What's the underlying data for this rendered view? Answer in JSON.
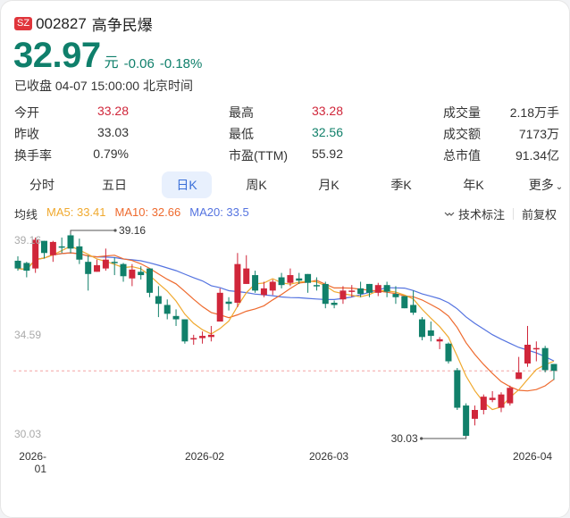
{
  "header": {
    "exchange_badge": "SZ",
    "code": "002827",
    "name": "高争民爆",
    "price": "32.97",
    "unit": "元",
    "change": "-0.06",
    "change_pct": "-0.18%",
    "status": "已收盘 04-07 15:00:00 北京时间"
  },
  "stats": {
    "rows": [
      [
        {
          "label": "今开",
          "value": "33.28",
          "color": "red"
        },
        {
          "label": "最高",
          "value": "33.28",
          "color": "red"
        },
        {
          "label": "成交量",
          "value": "2.18万手"
        }
      ],
      [
        {
          "label": "昨收",
          "value": "33.03"
        },
        {
          "label": "最低",
          "value": "32.56",
          "color": "green"
        },
        {
          "label": "成交额",
          "value": "7173万"
        }
      ],
      [
        {
          "label": "换手率",
          "value": "0.79%"
        },
        {
          "label": "市盈(TTM)",
          "value": "55.92"
        },
        {
          "label": "总市值",
          "value": "91.34亿"
        }
      ]
    ]
  },
  "tabs": [
    {
      "label": "分时"
    },
    {
      "label": "五日"
    },
    {
      "label": "日K",
      "active": true
    },
    {
      "label": "周K"
    },
    {
      "label": "月K"
    },
    {
      "label": "季K"
    },
    {
      "label": "年K"
    },
    {
      "label": "更多"
    }
  ],
  "ma": {
    "label": "均线",
    "ma5": "MA5: 33.41",
    "ma10": "MA10: 32.66",
    "ma20": "MA20: 33.5"
  },
  "tools": {
    "annotate": "技术标注",
    "adjust": "前复权"
  },
  "colors": {
    "up": "#d0263a",
    "down": "#11806a",
    "ma5": "#f0a92e",
    "ma10": "#ee6a2e",
    "ma20": "#5473e0",
    "accent": "#3a6fd8"
  },
  "chart_data": {
    "type": "candlestick",
    "title": "002827 高争民爆 日K",
    "ylim": [
      30.03,
      39.16
    ],
    "y_ticks": [
      "39.16",
      "34.59",
      "30.03"
    ],
    "x_ticks": [
      "2026-01",
      "2026-02",
      "2026-03",
      "2026-04"
    ],
    "annotations": {
      "high": "39.16",
      "low": "30.03"
    },
    "last_close_line": 32.97,
    "legend": [
      "MA5: 33.41",
      "MA10: 32.66",
      "MA20: 33.5"
    ],
    "candles": [
      {
        "o": 37.95,
        "c": 37.6,
        "h": 38.15,
        "l": 37.5
      },
      {
        "o": 37.85,
        "c": 37.5,
        "h": 37.9,
        "l": 37.2
      },
      {
        "o": 37.6,
        "c": 38.9,
        "h": 39.0,
        "l": 37.4
      },
      {
        "o": 38.85,
        "c": 38.3,
        "h": 38.85,
        "l": 38.05
      },
      {
        "o": 38.2,
        "c": 38.8,
        "h": 38.85,
        "l": 37.9
      },
      {
        "o": 38.6,
        "c": 38.55,
        "h": 39.0,
        "l": 38.3
      },
      {
        "o": 39.1,
        "c": 38.5,
        "h": 39.16,
        "l": 38.3
      },
      {
        "o": 38.6,
        "c": 38.0,
        "h": 38.95,
        "l": 37.8
      },
      {
        "o": 37.9,
        "c": 37.35,
        "h": 38.2,
        "l": 36.6
      },
      {
        "o": 37.45,
        "c": 37.75,
        "h": 38.0,
        "l": 37.45
      },
      {
        "o": 37.6,
        "c": 38.0,
        "h": 38.5,
        "l": 37.5
      },
      {
        "o": 37.9,
        "c": 37.85,
        "h": 38.1,
        "l": 37.3
      },
      {
        "o": 37.8,
        "c": 37.25,
        "h": 37.85,
        "l": 37.0
      },
      {
        "o": 37.15,
        "c": 37.55,
        "h": 37.8,
        "l": 36.8
      },
      {
        "o": 37.45,
        "c": 37.3,
        "h": 37.7,
        "l": 37.1
      },
      {
        "o": 37.6,
        "c": 36.5,
        "h": 37.6,
        "l": 36.3
      },
      {
        "o": 36.35,
        "c": 36.0,
        "h": 36.8,
        "l": 35.4
      },
      {
        "o": 35.95,
        "c": 35.55,
        "h": 36.2,
        "l": 35.3
      },
      {
        "o": 35.45,
        "c": 35.3,
        "h": 35.75,
        "l": 35.0
      },
      {
        "o": 35.3,
        "c": 34.3,
        "h": 35.3,
        "l": 34.2
      },
      {
        "o": 34.4,
        "c": 34.45,
        "h": 34.6,
        "l": 34.15
      },
      {
        "o": 34.45,
        "c": 34.55,
        "h": 34.75,
        "l": 34.2
      },
      {
        "o": 34.5,
        "c": 34.6,
        "h": 35.0,
        "l": 34.3
      },
      {
        "o": 35.2,
        "c": 36.5,
        "h": 36.7,
        "l": 35.2
      },
      {
        "o": 36.1,
        "c": 36.0,
        "h": 36.3,
        "l": 35.7
      },
      {
        "o": 36.05,
        "c": 37.8,
        "h": 38.3,
        "l": 35.85
      },
      {
        "o": 36.9,
        "c": 37.6,
        "h": 38.2,
        "l": 36.9
      },
      {
        "o": 37.3,
        "c": 36.6,
        "h": 37.5,
        "l": 36.5
      },
      {
        "o": 36.4,
        "c": 36.7,
        "h": 37.0,
        "l": 36.3
      },
      {
        "o": 36.6,
        "c": 37.0,
        "h": 37.1,
        "l": 36.4
      },
      {
        "o": 37.2,
        "c": 36.85,
        "h": 37.4,
        "l": 36.7
      },
      {
        "o": 36.95,
        "c": 37.3,
        "h": 37.6,
        "l": 36.8
      },
      {
        "o": 37.15,
        "c": 37.05,
        "h": 37.4,
        "l": 36.9
      },
      {
        "o": 37.35,
        "c": 36.95,
        "h": 37.35,
        "l": 36.5
      },
      {
        "o": 36.85,
        "c": 36.8,
        "h": 37.2,
        "l": 36.6
      },
      {
        "o": 36.9,
        "c": 36.0,
        "h": 37.0,
        "l": 35.8
      },
      {
        "o": 36.05,
        "c": 35.95,
        "h": 36.15,
        "l": 35.8
      },
      {
        "o": 36.2,
        "c": 36.6,
        "h": 36.8,
        "l": 36.0
      },
      {
        "o": 36.55,
        "c": 36.6,
        "h": 36.85,
        "l": 36.3
      },
      {
        "o": 36.7,
        "c": 36.45,
        "h": 37.0,
        "l": 36.3
      },
      {
        "o": 36.9,
        "c": 36.5,
        "h": 36.9,
        "l": 36.3
      },
      {
        "o": 36.5,
        "c": 36.85,
        "h": 36.95,
        "l": 36.35
      },
      {
        "o": 36.85,
        "c": 36.55,
        "h": 37.0,
        "l": 36.3
      },
      {
        "o": 36.45,
        "c": 36.3,
        "h": 36.8,
        "l": 36.0
      },
      {
        "o": 36.35,
        "c": 35.8,
        "h": 36.35,
        "l": 35.8
      },
      {
        "o": 35.95,
        "c": 35.6,
        "h": 36.6,
        "l": 35.5
      },
      {
        "o": 35.3,
        "c": 34.5,
        "h": 35.4,
        "l": 34.35
      },
      {
        "o": 34.8,
        "c": 34.55,
        "h": 35.2,
        "l": 34.3
      },
      {
        "o": 34.3,
        "c": 34.4,
        "h": 34.5,
        "l": 33.95
      },
      {
        "o": 34.2,
        "c": 33.4,
        "h": 34.25,
        "l": 33.3
      },
      {
        "o": 33.0,
        "c": 31.3,
        "h": 33.1,
        "l": 31.2
      },
      {
        "o": 31.4,
        "c": 30.03,
        "h": 31.5,
        "l": 30.03
      },
      {
        "o": 30.8,
        "c": 31.2,
        "h": 31.4,
        "l": 30.5
      },
      {
        "o": 31.2,
        "c": 31.8,
        "h": 31.9,
        "l": 31.0
      },
      {
        "o": 31.65,
        "c": 31.75,
        "h": 32.05,
        "l": 31.55
      },
      {
        "o": 31.3,
        "c": 31.9,
        "h": 32.0,
        "l": 31.1
      },
      {
        "o": 31.5,
        "c": 32.2,
        "h": 32.3,
        "l": 31.4
      },
      {
        "o": 32.6,
        "c": 32.9,
        "h": 33.6,
        "l": 32.6
      },
      {
        "o": 33.3,
        "c": 34.15,
        "h": 35.0,
        "l": 33.15
      },
      {
        "o": 34.0,
        "c": 34.0,
        "h": 34.3,
        "l": 33.4
      },
      {
        "o": 34.0,
        "c": 33.0,
        "h": 34.1,
        "l": 32.9
      },
      {
        "o": 33.28,
        "c": 32.97,
        "h": 33.28,
        "l": 32.56
      }
    ]
  }
}
